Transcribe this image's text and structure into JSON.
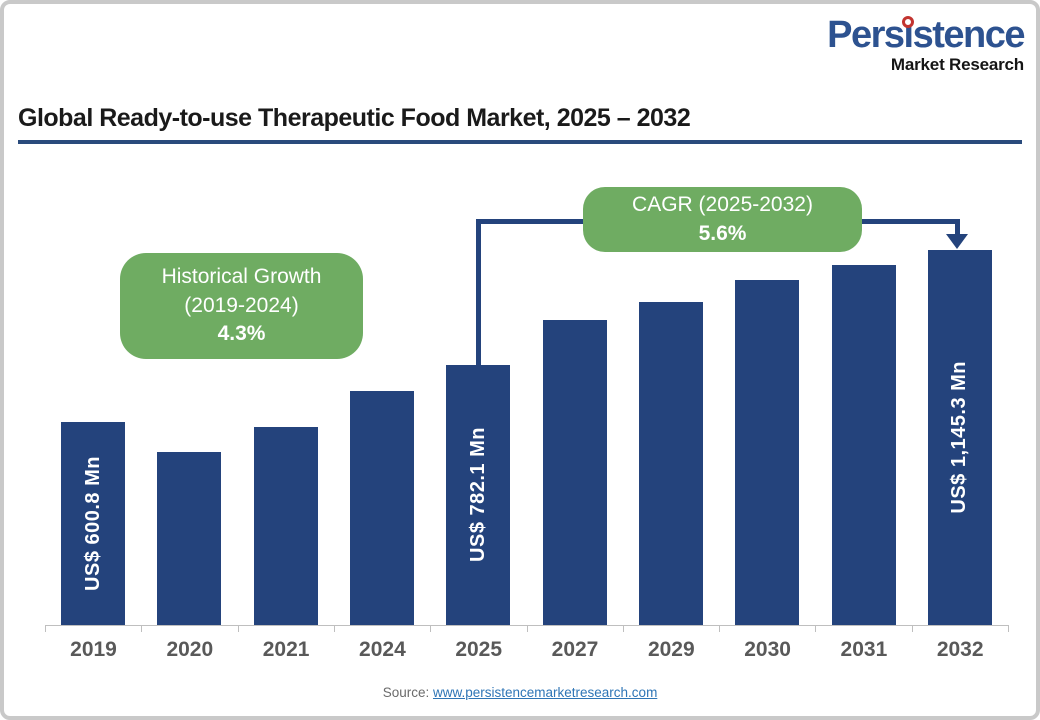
{
  "brand": {
    "word_pre": "Pers",
    "word_i": "i",
    "word_post": "stence",
    "subtitle": "Market Research",
    "logo_blue": "#2d5290",
    "dot_red": "#c23430"
  },
  "header": {
    "title": "Global Ready-to-use Therapeutic Food Market, 2025 – 2032"
  },
  "annotations": {
    "historical": {
      "line1": "Historical Growth",
      "line2": "(2019-2024)",
      "value": "4.3%"
    },
    "cagr": {
      "line1": "CAGR (2025-2032)",
      "value": "5.6%"
    }
  },
  "chart_data": {
    "type": "bar",
    "title": "Global Ready-to-use Therapeutic Food Market, 2025 – 2032",
    "unit": "US$ Mn",
    "categories": [
      "2019",
      "2020",
      "2021",
      "2024",
      "2025",
      "2027",
      "2029",
      "2030",
      "2031",
      "2032"
    ],
    "values": [
      600.8,
      505,
      585,
      700,
      782.1,
      925,
      980,
      1050,
      1100,
      1145.3
    ],
    "labeled_values": {
      "2019": 600.8,
      "2025": 782.1,
      "2032": 1145.3
    },
    "values_note": "unlabeled years estimated from bar heights",
    "bar_labels": [
      "US$ 600.8 Mn",
      "",
      "",
      "",
      "US$ 782.1 Mn",
      "",
      "",
      "",
      "",
      "US$ 1,145.3 Mn"
    ],
    "historical_growth_2019_2024": "4.3%",
    "cagr_2025_2032": "5.6%",
    "ylim": [
      0,
      1200
    ],
    "grid": "off",
    "legend": "none",
    "bar_color": "#24437c",
    "annotation_color": "#6fac62",
    "axis_color": "#bfbfbf",
    "xlabel": "",
    "ylabel": ""
  },
  "footer": {
    "source_label": "Source:",
    "source_link": "www.persistencemarketresearch.com"
  }
}
